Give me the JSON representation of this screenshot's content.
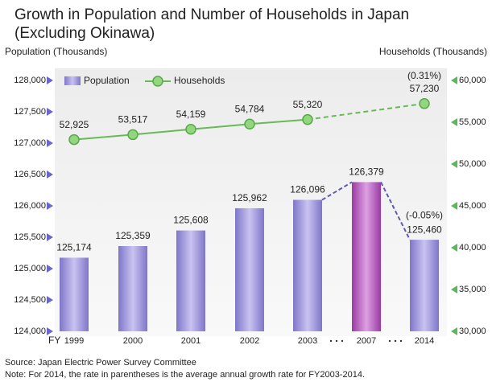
{
  "chart_data": {
    "type": "bar_line",
    "title": "Growth in Population and Number of Households in Japan",
    "subtitle": "(Excluding Okinawa)",
    "ylabel": "Population (Thousands)",
    "y2label": "Households (Thousands)",
    "xlabel": "FY",
    "categories": [
      "1999",
      "2000",
      "2001",
      "2002",
      "2003",
      "2007",
      "2014"
    ],
    "series": [
      {
        "name": "Population",
        "type": "bar",
        "color": "#9b93d8",
        "colors": [
          "#9b93d8",
          "#9b93d8",
          "#9b93d8",
          "#9b93d8",
          "#9b93d8",
          "#b24fb8",
          "#9b93d8"
        ],
        "values": [
          125174,
          125359,
          125608,
          125962,
          126096,
          126379,
          125460
        ],
        "value_labels": [
          "125,174",
          "125,359",
          "125,608",
          "125,962",
          "126,096",
          "126,379",
          "125,460"
        ]
      },
      {
        "name": "Households",
        "type": "line",
        "axis": "y2",
        "color": "#66bb55",
        "values": [
          52925,
          53517,
          54159,
          54784,
          55320,
          null,
          57230
        ],
        "value_labels": [
          "52,925",
          "53,517",
          "54,159",
          "54,784",
          "55,320",
          null,
          "57,230"
        ]
      }
    ],
    "annotations": [
      {
        "series": 1,
        "index": 6,
        "text": "(0.31%)"
      },
      {
        "series": 0,
        "index": 6,
        "text": "(-0.05%)"
      }
    ],
    "ylim": [
      124000,
      128000
    ],
    "yticks": [
      {
        "value": 124000,
        "label": "124,000"
      },
      {
        "value": 124500,
        "label": "124,500"
      },
      {
        "value": 125000,
        "label": "125,000"
      },
      {
        "value": 125500,
        "label": "125,500"
      },
      {
        "value": 126000,
        "label": "126,000"
      },
      {
        "value": 126500,
        "label": "126,500"
      },
      {
        "value": 127000,
        "label": "127,000"
      },
      {
        "value": 127500,
        "label": "127,500"
      },
      {
        "value": 128000,
        "label": "128,000"
      }
    ],
    "y2lim": [
      30000,
      60000
    ],
    "y2ticks": [
      {
        "value": 30000,
        "label": "30,000"
      },
      {
        "value": 35000,
        "label": "35,000"
      },
      {
        "value": 40000,
        "label": "40,000"
      },
      {
        "value": 45000,
        "label": "45,000"
      },
      {
        "value": 50000,
        "label": "50,000"
      },
      {
        "value": 55000,
        "label": "55,000"
      },
      {
        "value": 60000,
        "label": "60,000"
      }
    ],
    "legend": "top-left",
    "source": "Source: Japan Electric Power Survey Committee",
    "note": "Note: For 2014, the rate in parentheses is the average annual growth rate for FY2003-2014."
  }
}
